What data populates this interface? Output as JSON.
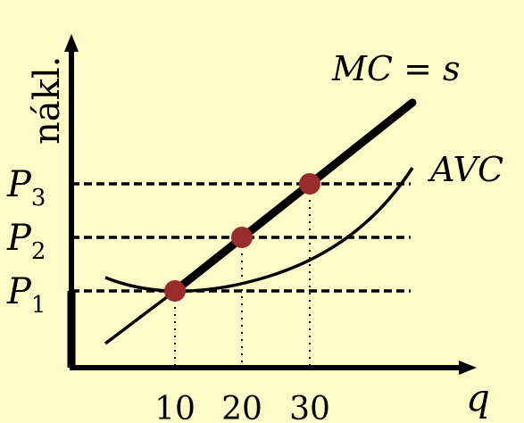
{
  "diagram": {
    "y_axis_label": "nákl.",
    "x_axis_label": "q",
    "curves": {
      "mc_label": "MC = s",
      "avc_label": "AVC"
    },
    "price_levels": [
      {
        "label": "P",
        "sub": "3",
        "q": 30
      },
      {
        "label": "P",
        "sub": "2",
        "q": 20
      },
      {
        "label": "P",
        "sub": "1",
        "q": 10
      }
    ],
    "x_ticks": [
      "10",
      "20",
      "30"
    ],
    "colors": {
      "background": "#FEFBC8",
      "points": "#9B2C2C",
      "lines": "#000000"
    }
  }
}
